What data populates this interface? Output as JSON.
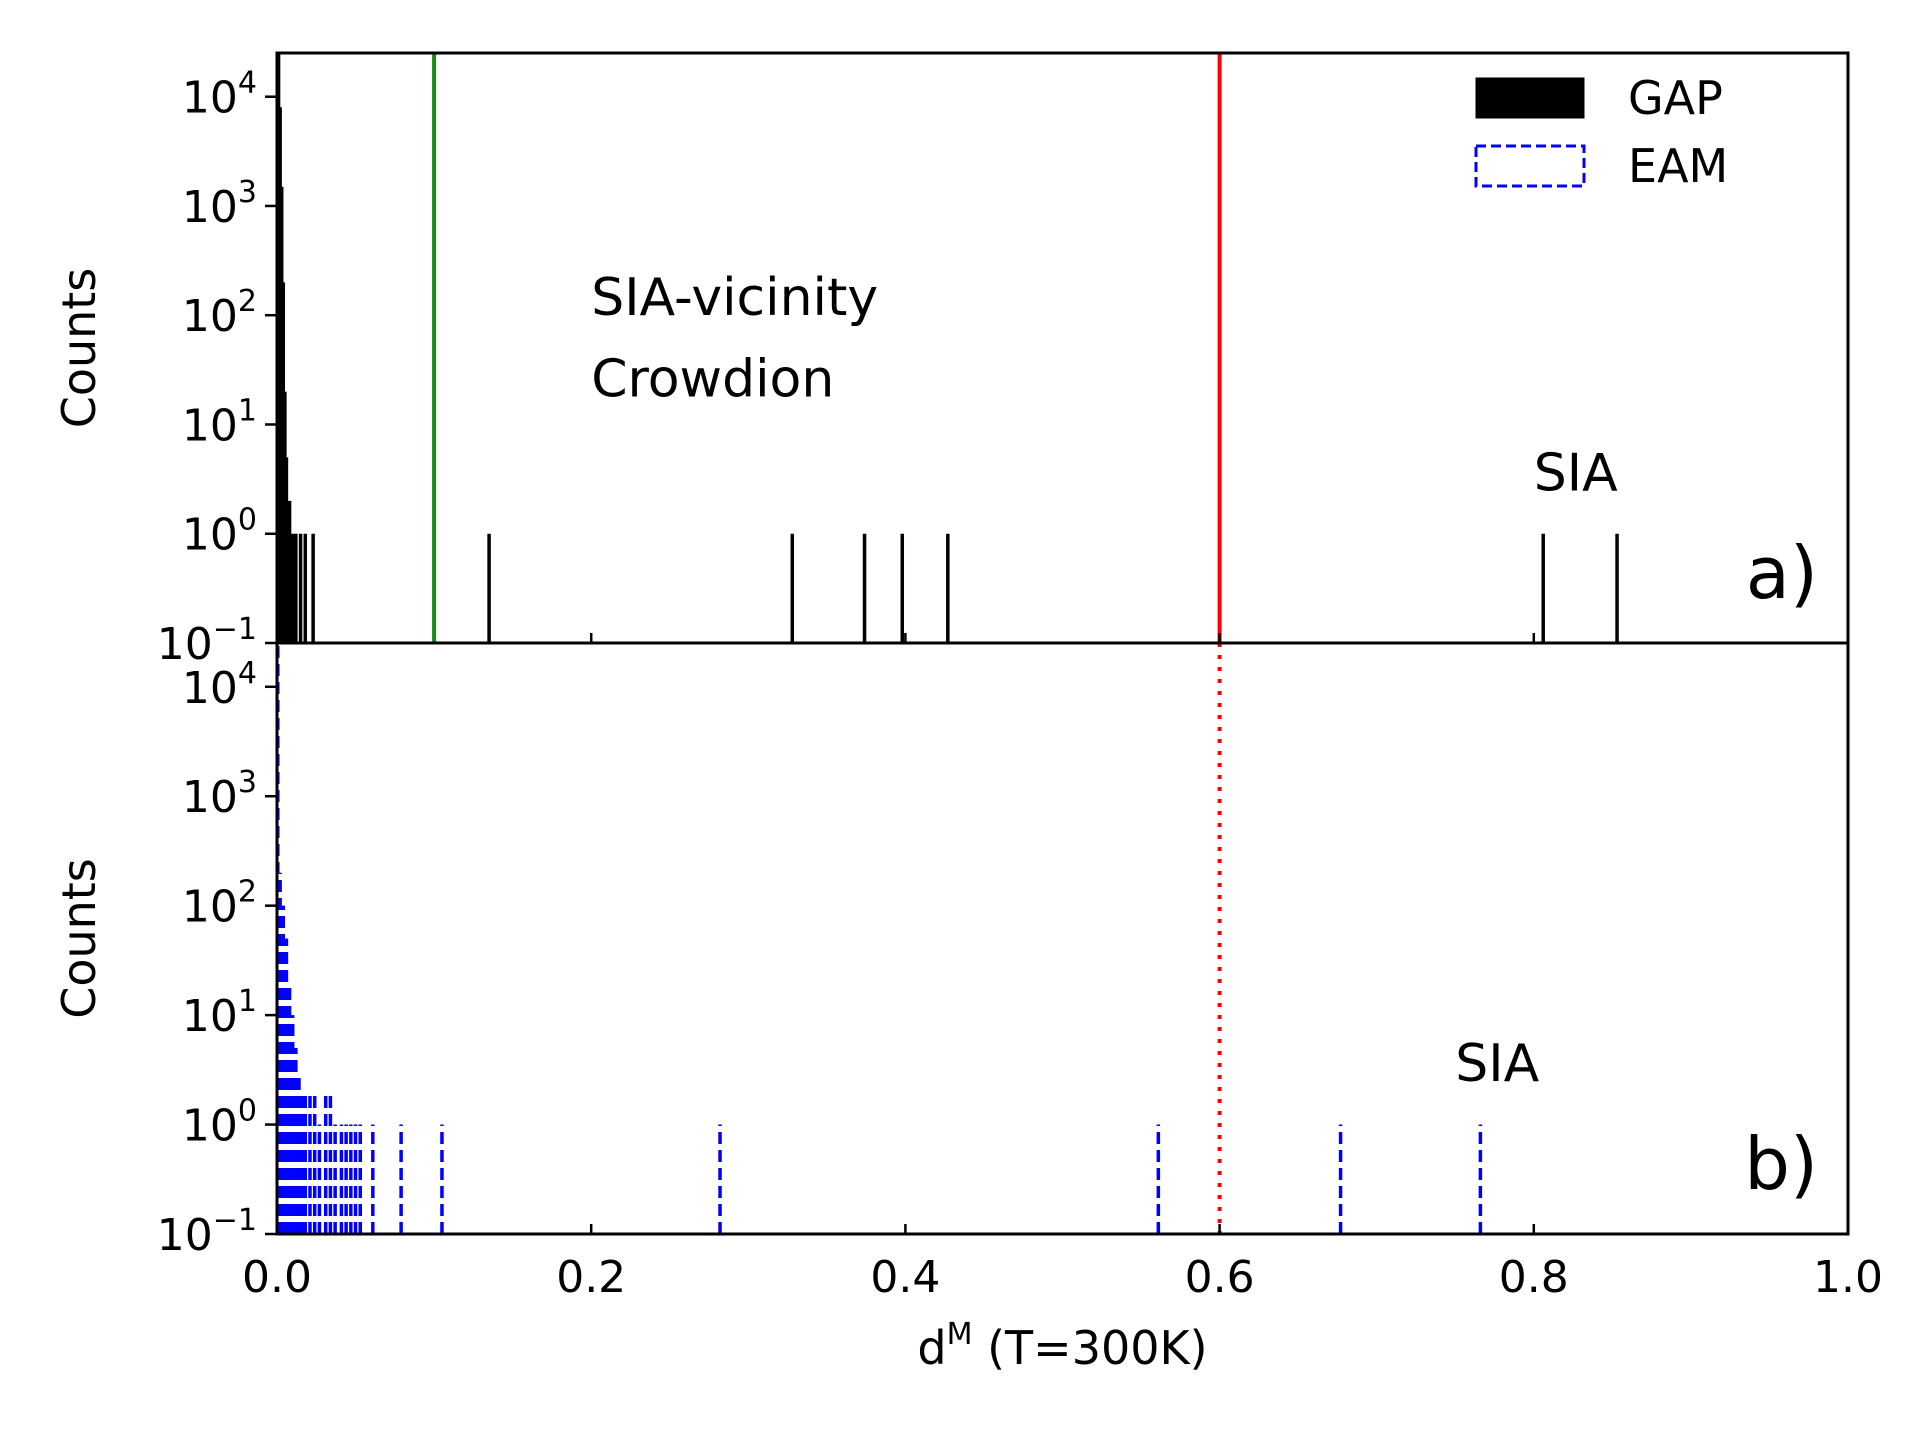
{
  "chart_data": [
    {
      "panel": "a",
      "type": "bar",
      "ylabel": "Counts",
      "xlim": [
        0.0,
        1.0
      ],
      "ylim_log10": [
        -1,
        4.4
      ],
      "yscale": "log",
      "xticks_shared": true,
      "panel_tag": "a)",
      "annotations": [
        {
          "text": "SIA-vicinity",
          "x": 0.2,
          "y": 100
        },
        {
          "text": "Crowdion",
          "x": 0.2,
          "y": 18
        },
        {
          "text": "SIA",
          "x": 0.8,
          "y": 2.5
        }
      ],
      "thresholds": [
        {
          "x": 0.1,
          "color": "#1a8a1a",
          "style": "solid"
        },
        {
          "x": 0.6,
          "color": "#ff0000",
          "style": "solid"
        }
      ],
      "series": [
        {
          "name": "GAP",
          "style": "step-filled",
          "color": "#000000",
          "x": [
            0.001,
            0.002,
            0.003,
            0.004,
            0.005,
            0.006,
            0.008,
            0.01,
            0.012,
            0.015,
            0.018,
            0.023,
            0.135,
            0.328,
            0.374,
            0.398,
            0.427,
            0.806,
            0.853
          ],
          "values": [
            25000,
            8000,
            1500,
            200,
            20,
            5,
            2,
            1,
            1,
            1,
            1,
            1,
            1,
            1,
            1,
            1,
            1,
            1,
            1
          ]
        }
      ]
    },
    {
      "panel": "b",
      "type": "bar",
      "ylabel": "Counts",
      "xlabel_main": "d",
      "xlabel_sup": "M",
      "xlabel_suffix": " (T=300K)",
      "xlim": [
        0.0,
        1.0
      ],
      "ylim_log10": [
        -1,
        4.4
      ],
      "yscale": "log",
      "panel_tag": "b)",
      "annotations": [
        {
          "text": "SIA",
          "x": 0.75,
          "y": 2.5
        }
      ],
      "thresholds": [
        {
          "x": 0.6,
          "color": "#ff0000",
          "style": "dotted"
        }
      ],
      "series": [
        {
          "name": "EAM",
          "style": "step-dashed",
          "color": "#0000ff",
          "x": [
            0.0005,
            0.002,
            0.004,
            0.006,
            0.008,
            0.01,
            0.012,
            0.014,
            0.016,
            0.018,
            0.021,
            0.024,
            0.027,
            0.031,
            0.034,
            0.037,
            0.041,
            0.044,
            0.047,
            0.05,
            0.053,
            0.061,
            0.079,
            0.105,
            0.282,
            0.561,
            0.677,
            0.766
          ],
          "values": [
            25000,
            200,
            100,
            50,
            20,
            10,
            5,
            3,
            2,
            2,
            2,
            2,
            1,
            2,
            2,
            1,
            1,
            1,
            1,
            1,
            1,
            1,
            1,
            1,
            1,
            1,
            1,
            1
          ]
        }
      ]
    }
  ],
  "shared": {
    "xticks": [
      0.0,
      0.2,
      0.4,
      0.6,
      0.8,
      1.0
    ],
    "xtick_labels": [
      "0.0",
      "0.2",
      "0.4",
      "0.6",
      "0.8",
      "1.0"
    ],
    "ytick_exponents": [
      -1,
      0,
      1,
      2,
      3,
      4
    ],
    "ytick_base": "10"
  },
  "legend": {
    "position": "top-right",
    "entries": [
      {
        "label": "GAP",
        "style": "filled",
        "color": "#000000"
      },
      {
        "label": "EAM",
        "style": "dashed-outline",
        "color": "#0000ff"
      }
    ]
  }
}
